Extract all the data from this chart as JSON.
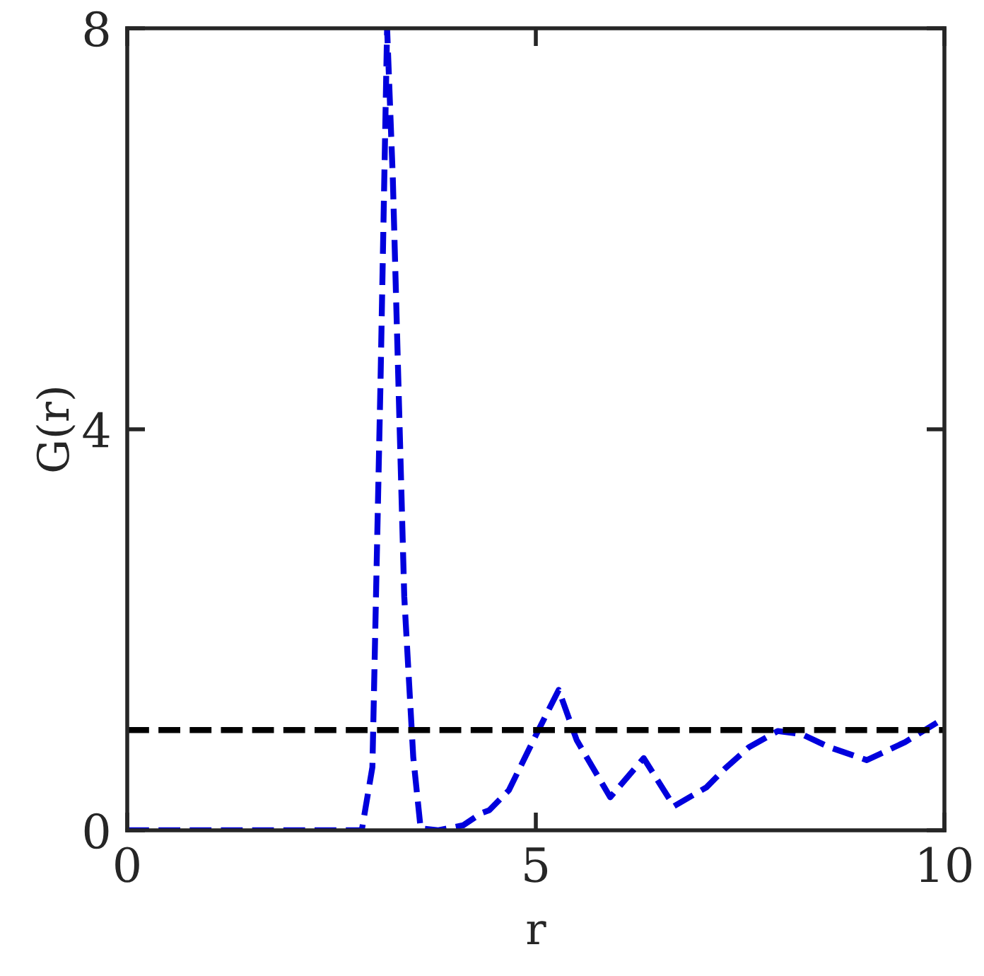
{
  "chart_data": {
    "type": "line",
    "xlabel": "r",
    "ylabel": "G(r)",
    "x": [
      0,
      1,
      2,
      2.87,
      3.0,
      3.1,
      3.18,
      3.25,
      3.39,
      3.5,
      3.59,
      3.8,
      4.11,
      4.33,
      4.43,
      4.67,
      5.02,
      5.28,
      5.5,
      5.91,
      6.32,
      6.69,
      7.09,
      7.32,
      7.61,
      7.96,
      8.25,
      8.59,
      9.05,
      9.52,
      9.92
    ],
    "series": [
      {
        "color": "#0000dd",
        "line_style": "dashed",
        "values": [
          0,
          0,
          0,
          0,
          0.63,
          4.5,
          8,
          6.5,
          2.33,
          0.73,
          0.02,
          0,
          0.05,
          0.17,
          0.2,
          0.4,
          0.98,
          1.4,
          0.9,
          0.33,
          0.72,
          0.24,
          0.43,
          0.62,
          0.83,
          0.99,
          0.96,
          0.83,
          0.7,
          0.88,
          1.08
        ]
      }
    ],
    "ref_lines": [
      {
        "axis": "y",
        "value": 1,
        "color": "#000000",
        "line_style": "dashed"
      }
    ],
    "xlim": [
      0,
      10
    ],
    "ylim": [
      0,
      8
    ],
    "xticks": [
      0,
      5,
      10
    ],
    "yticks": [
      0,
      4,
      8
    ],
    "grid": false,
    "legend": false
  }
}
